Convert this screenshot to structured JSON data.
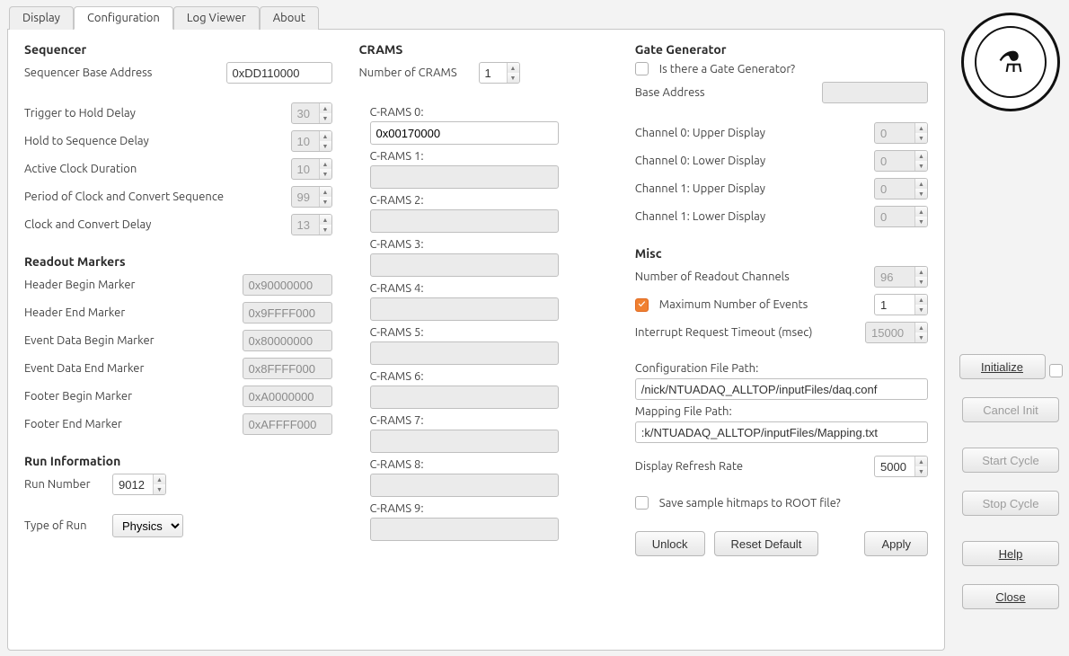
{
  "tabs": {
    "display": "Display",
    "configuration": "Configuration",
    "logviewer": "Log Viewer",
    "about": "About",
    "active": "configuration"
  },
  "sequencer": {
    "title": "Sequencer",
    "base_address_label": "Sequencer Base Address",
    "base_address_value": "0xDD110000",
    "trigger_hold_label": "Trigger to Hold Delay",
    "trigger_hold_value": "30",
    "hold_seq_label": "Hold to Sequence Delay",
    "hold_seq_value": "10",
    "active_clock_label": "Active Clock Duration",
    "active_clock_value": "10",
    "period_clock_label": "Period of Clock and Convert Sequence",
    "period_clock_value": "99",
    "clock_convert_label": "Clock and Convert Delay",
    "clock_convert_value": "13"
  },
  "markers": {
    "title": "Readout Markers",
    "header_begin_label": "Header Begin Marker",
    "header_begin_value": "0x90000000",
    "header_end_label": "Header End Marker",
    "header_end_value": "0x9FFFF000",
    "event_begin_label": "Event Data Begin Marker",
    "event_begin_value": "0x80000000",
    "event_end_label": "Event Data End Marker",
    "event_end_value": "0x8FFFF000",
    "footer_begin_label": "Footer Begin Marker",
    "footer_begin_value": "0xA0000000",
    "footer_end_label": "Footer End Marker",
    "footer_end_value": "0xAFFFF000"
  },
  "runinfo": {
    "title": "Run Information",
    "run_number_label": "Run Number",
    "run_number_value": "9012",
    "type_label": "Type of Run",
    "type_value": "Physics"
  },
  "crams": {
    "title": "CRAMS",
    "count_label": "Number of CRAMS",
    "count_value": "1",
    "labels": [
      "C-RAMS 0:",
      "C-RAMS 1:",
      "C-RAMS 2:",
      "C-RAMS 3:",
      "C-RAMS 4:",
      "C-RAMS 5:",
      "C-RAMS 6:",
      "C-RAMS 7:",
      "C-RAMS 8:",
      "C-RAMS 9:"
    ],
    "values": [
      "0x00170000",
      "",
      "",
      "",
      "",
      "",
      "",
      "",
      "",
      ""
    ]
  },
  "gate": {
    "title": "Gate Generator",
    "exists_label": "Is there a Gate Generator?",
    "exists_checked": false,
    "base_label": "Base Address",
    "base_value": "",
    "ch0u_label": "Channel 0: Upper Display",
    "ch0u_value": "0",
    "ch0l_label": "Channel 0: Lower Display",
    "ch0l_value": "0",
    "ch1u_label": "Channel 1: Upper Display",
    "ch1u_value": "0",
    "ch1l_label": "Channel 1: Lower Display",
    "ch1l_value": "0"
  },
  "misc": {
    "title": "Misc",
    "channels_label": "Number of Readout Channels",
    "channels_value": "96",
    "maxevents_label": "Maximum Number of Events",
    "maxevents_value": "1",
    "maxevents_checked": true,
    "irq_label": "Interrupt Request Timeout (msec)",
    "irq_value": "15000",
    "conf_path_label": "Configuration File Path:",
    "conf_path_value": "/nick/NTUADAQ_ALLTOP/inputFiles/daq.conf",
    "map_path_label": "Mapping File Path:",
    "map_path_value": ":k/NTUADAQ_ALLTOP/inputFiles/Mapping.txt",
    "refresh_label": "Display Refresh Rate",
    "refresh_value": "5000",
    "hitmaps_label": "Save sample hitmaps to ROOT file?",
    "hitmaps_checked": false
  },
  "footer_buttons": {
    "unlock": "Unlock",
    "reset": "Reset Default",
    "apply": "Apply"
  },
  "side_buttons": {
    "initialize": "Initialize",
    "cancel_init": "Cancel Init",
    "start_cycle": "Start Cycle",
    "stop_cycle": "Stop Cycle",
    "help": "Help",
    "close": "Close"
  },
  "colors": {
    "window_bg": "#f3f3f3",
    "panel_bg": "#ffffff",
    "border": "#c7c7c7",
    "disabled_bg": "#ebebeb",
    "disabled_text": "#8a8a8a",
    "text": "#333333",
    "label": "#444444",
    "checkbox_checked": "#f08030"
  }
}
